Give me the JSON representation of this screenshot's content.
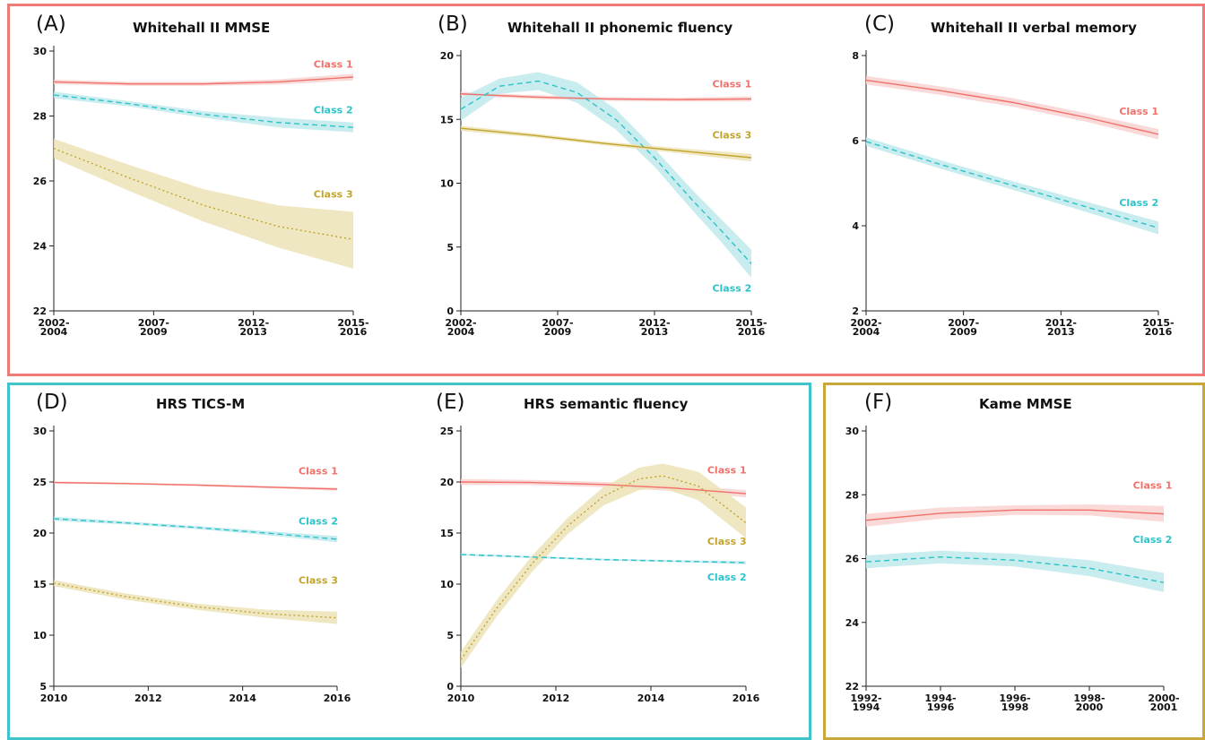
{
  "colors": {
    "class1": "#f0706a",
    "class2": "#2cc3c9",
    "class3": "#c2a42d",
    "class1_band": "#f9d3d2",
    "class2_band": "#bfe9ec",
    "class3_band": "#ece3b6",
    "frame_whitehall": "#ef7a78",
    "frame_hrs": "#3fc4cb",
    "frame_kame": "#c9a73a"
  },
  "chart_data": [
    {
      "id": "A",
      "letter": "(A)",
      "title": "Whitehall II MMSE",
      "type": "line",
      "xticks": [
        "2002-\n2004",
        "2007-\n2009",
        "2012-\n2013",
        "2015-\n2016"
      ],
      "xlim": [
        0,
        3
      ],
      "ylim": [
        22,
        30
      ],
      "yticks": [
        22,
        24,
        26,
        28,
        30
      ],
      "series": [
        {
          "name": "Class 1",
          "cls": "class1",
          "dash": "solid",
          "label_x": 2.8,
          "label_y": 29.6,
          "x": [
            0,
            0.75,
            1.5,
            2.25,
            3
          ],
          "y": [
            29.05,
            28.99,
            28.99,
            29.05,
            29.2
          ],
          "lower": [
            28.98,
            28.93,
            28.93,
            28.97,
            29.1
          ],
          "upper": [
            29.12,
            29.05,
            29.05,
            29.13,
            29.3
          ]
        },
        {
          "name": "Class 2",
          "cls": "class2",
          "dash": "dashed",
          "label_x": 2.8,
          "label_y": 28.2,
          "x": [
            0,
            0.75,
            1.5,
            2.25,
            3
          ],
          "y": [
            28.65,
            28.38,
            28.05,
            27.8,
            27.65
          ],
          "lower": [
            28.55,
            28.3,
            27.95,
            27.65,
            27.5
          ],
          "upper": [
            28.75,
            28.46,
            28.15,
            27.95,
            27.8
          ]
        },
        {
          "name": "Class 3",
          "cls": "class3",
          "dash": "dotted",
          "label_x": 2.8,
          "label_y": 25.6,
          "x": [
            0,
            0.75,
            1.5,
            2.25,
            3
          ],
          "y": [
            27.0,
            26.1,
            25.25,
            24.6,
            24.2
          ],
          "lower": [
            26.7,
            25.7,
            24.75,
            23.95,
            23.3
          ],
          "upper": [
            27.3,
            26.5,
            25.75,
            25.25,
            25.05
          ]
        }
      ]
    },
    {
      "id": "B",
      "letter": "(B)",
      "title": "Whitehall II phonemic fluency",
      "type": "line",
      "xticks": [
        "2002-\n2004",
        "2007-\n2009",
        "2012-\n2013",
        "2015-\n2016"
      ],
      "xlim": [
        0,
        3
      ],
      "ylim": [
        0,
        20
      ],
      "yticks": [
        0,
        5,
        10,
        15,
        20
      ],
      "series": [
        {
          "name": "Class 1",
          "cls": "class1",
          "dash": "solid",
          "label_x": 2.8,
          "label_y": 17.8,
          "x": [
            0,
            0.75,
            1.5,
            2.25,
            3
          ],
          "y": [
            17.0,
            16.75,
            16.6,
            16.55,
            16.6
          ],
          "lower": [
            16.85,
            16.6,
            16.45,
            16.4,
            16.4
          ],
          "upper": [
            17.15,
            16.9,
            16.75,
            16.7,
            16.8
          ]
        },
        {
          "name": "Class 2",
          "cls": "class2",
          "dash": "dashed",
          "label_x": 2.8,
          "label_y": 1.8,
          "x": [
            0,
            0.4,
            0.8,
            1.2,
            1.6,
            2.0,
            2.4,
            2.7,
            3
          ],
          "y": [
            15.8,
            17.6,
            18.0,
            17.1,
            15.0,
            12.0,
            8.6,
            6.2,
            3.7
          ],
          "lower": [
            14.9,
            17.0,
            17.3,
            16.3,
            14.2,
            11.3,
            7.8,
            5.3,
            2.6
          ],
          "upper": [
            16.7,
            18.2,
            18.7,
            17.9,
            15.8,
            12.7,
            9.4,
            7.1,
            4.8
          ]
        },
        {
          "name": "Class 3",
          "cls": "class3",
          "dash": "solid",
          "label_x": 2.8,
          "label_y": 13.8,
          "x": [
            0,
            0.75,
            1.5,
            2.25,
            3
          ],
          "y": [
            14.3,
            13.75,
            13.1,
            12.55,
            12.0
          ],
          "lower": [
            14.1,
            13.6,
            12.95,
            12.35,
            11.7
          ],
          "upper": [
            14.5,
            13.9,
            13.25,
            12.75,
            12.3
          ]
        }
      ]
    },
    {
      "id": "C",
      "letter": "(C)",
      "title": "Whitehall II verbal memory",
      "type": "line",
      "xticks": [
        "2002-\n2004",
        "2007-\n2009",
        "2012-\n2013",
        "2015-\n2016"
      ],
      "xlim": [
        0,
        3
      ],
      "ylim": [
        2,
        8
      ],
      "yticks": [
        2,
        4,
        6,
        8
      ],
      "series": [
        {
          "name": "Class 1",
          "cls": "class1",
          "dash": "solid",
          "label_x": 2.8,
          "label_y": 6.7,
          "x": [
            0,
            0.75,
            1.5,
            2.25,
            3
          ],
          "y": [
            7.42,
            7.18,
            6.9,
            6.55,
            6.15
          ],
          "lower": [
            7.32,
            7.08,
            6.8,
            6.45,
            6.03
          ],
          "upper": [
            7.52,
            7.28,
            7.0,
            6.65,
            6.27
          ]
        },
        {
          "name": "Class 2",
          "cls": "class2",
          "dash": "dashed",
          "label_x": 2.8,
          "label_y": 4.55,
          "x": [
            0,
            0.75,
            1.5,
            2.25,
            3
          ],
          "y": [
            5.98,
            5.45,
            4.95,
            4.45,
            3.95
          ],
          "lower": [
            5.88,
            5.35,
            4.85,
            4.33,
            3.8
          ],
          "upper": [
            6.08,
            5.55,
            5.05,
            4.57,
            4.1
          ]
        }
      ]
    },
    {
      "id": "D",
      "letter": "(D)",
      "title": "HRS TICS-M",
      "type": "line",
      "xticks": [
        "2010",
        "2012",
        "2014",
        "2016"
      ],
      "xlim": [
        2010,
        2016
      ],
      "ylim": [
        5,
        30
      ],
      "yticks": [
        5,
        10,
        15,
        20,
        25,
        30
      ],
      "series": [
        {
          "name": "Class 1",
          "cls": "class1",
          "dash": "solid",
          "label_x": 2015.6,
          "label_y": 26.1,
          "x": [
            2010,
            2011.5,
            2013,
            2014.5,
            2016
          ],
          "y": [
            24.95,
            24.85,
            24.7,
            24.5,
            24.3
          ],
          "lower": [
            24.85,
            24.75,
            24.6,
            24.4,
            24.15
          ],
          "upper": [
            25.05,
            24.95,
            24.8,
            24.6,
            24.45
          ]
        },
        {
          "name": "Class 2",
          "cls": "class2",
          "dash": "dashed",
          "label_x": 2015.6,
          "label_y": 21.2,
          "x": [
            2010,
            2011.5,
            2013,
            2014.5,
            2016
          ],
          "y": [
            21.4,
            21.0,
            20.55,
            20.0,
            19.4
          ],
          "lower": [
            21.2,
            20.85,
            20.4,
            19.8,
            19.1
          ],
          "upper": [
            21.6,
            21.15,
            20.7,
            20.2,
            19.7
          ]
        },
        {
          "name": "Class 3",
          "cls": "class3",
          "dash": "dotted",
          "label_x": 2015.6,
          "label_y": 15.4,
          "x": [
            2010,
            2011.5,
            2013,
            2014.5,
            2016
          ],
          "y": [
            15.1,
            13.8,
            12.8,
            12.1,
            11.7
          ],
          "lower": [
            14.8,
            13.5,
            12.5,
            11.7,
            11.1
          ],
          "upper": [
            15.4,
            14.1,
            13.1,
            12.5,
            12.3
          ]
        }
      ]
    },
    {
      "id": "E",
      "letter": "(E)",
      "title": "HRS semantic fluency",
      "type": "line",
      "xticks": [
        "2010",
        "2012",
        "2014",
        "2016"
      ],
      "xlim": [
        2010,
        2016
      ],
      "ylim": [
        0,
        25
      ],
      "yticks": [
        0,
        5,
        10,
        15,
        20,
        25
      ],
      "series": [
        {
          "name": "Class 1",
          "cls": "class1",
          "dash": "solid",
          "label_x": 2015.6,
          "label_y": 21.2,
          "x": [
            2010,
            2011.5,
            2013,
            2014.5,
            2016
          ],
          "y": [
            20.0,
            19.95,
            19.75,
            19.4,
            18.85
          ],
          "lower": [
            19.7,
            19.7,
            19.5,
            19.1,
            18.5
          ],
          "upper": [
            20.3,
            20.2,
            20.0,
            19.7,
            19.2
          ]
        },
        {
          "name": "Class 2",
          "cls": "class2",
          "dash": "dashed",
          "label_x": 2015.6,
          "label_y": 10.7,
          "x": [
            2010,
            2011.5,
            2013,
            2014.5,
            2016
          ],
          "y": [
            12.9,
            12.65,
            12.4,
            12.25,
            12.1
          ],
          "lower": [
            12.8,
            12.55,
            12.3,
            12.15,
            11.95
          ],
          "upper": [
            13.0,
            12.75,
            12.5,
            12.35,
            12.25
          ]
        },
        {
          "name": "Class 3",
          "cls": "class3",
          "dash": "dotted",
          "label_x": 2015.6,
          "label_y": 14.2,
          "x": [
            2010,
            2010.75,
            2011.5,
            2012.25,
            2013,
            2013.75,
            2014.25,
            2015,
            2016
          ],
          "y": [
            2.6,
            7.6,
            12.0,
            15.7,
            18.6,
            20.3,
            20.6,
            19.6,
            16.0
          ],
          "lower": [
            1.8,
            6.8,
            11.2,
            14.9,
            17.7,
            19.2,
            19.4,
            18.2,
            14.5
          ],
          "upper": [
            3.4,
            8.4,
            12.8,
            16.5,
            19.5,
            21.4,
            21.8,
            21.0,
            17.5
          ]
        }
      ]
    },
    {
      "id": "F",
      "letter": "(F)",
      "title": "Kame MMSE",
      "type": "line",
      "xticks": [
        "1992-\n1994",
        "1994-\n1996",
        "1996-\n1998",
        "1998-\n2000",
        "2000-\n2001"
      ],
      "xlim": [
        0,
        4
      ],
      "ylim": [
        22,
        30
      ],
      "yticks": [
        22,
        24,
        26,
        28,
        30
      ],
      "series": [
        {
          "name": "Class 1",
          "cls": "class1",
          "dash": "solid",
          "label_x": 3.85,
          "label_y": 28.3,
          "x": [
            0,
            1,
            2,
            3,
            4
          ],
          "y": [
            27.2,
            27.42,
            27.52,
            27.52,
            27.4
          ],
          "lower": [
            27.0,
            27.25,
            27.37,
            27.35,
            27.15
          ],
          "upper": [
            27.4,
            27.6,
            27.67,
            27.7,
            27.65
          ]
        },
        {
          "name": "Class 2",
          "cls": "class2",
          "dash": "dashed",
          "label_x": 3.85,
          "label_y": 26.6,
          "x": [
            0,
            1,
            2,
            3,
            4
          ],
          "y": [
            25.9,
            26.05,
            25.95,
            25.7,
            25.25
          ],
          "lower": [
            25.7,
            25.85,
            25.75,
            25.45,
            24.95
          ],
          "upper": [
            26.1,
            26.25,
            26.15,
            25.95,
            25.55
          ]
        }
      ]
    }
  ]
}
